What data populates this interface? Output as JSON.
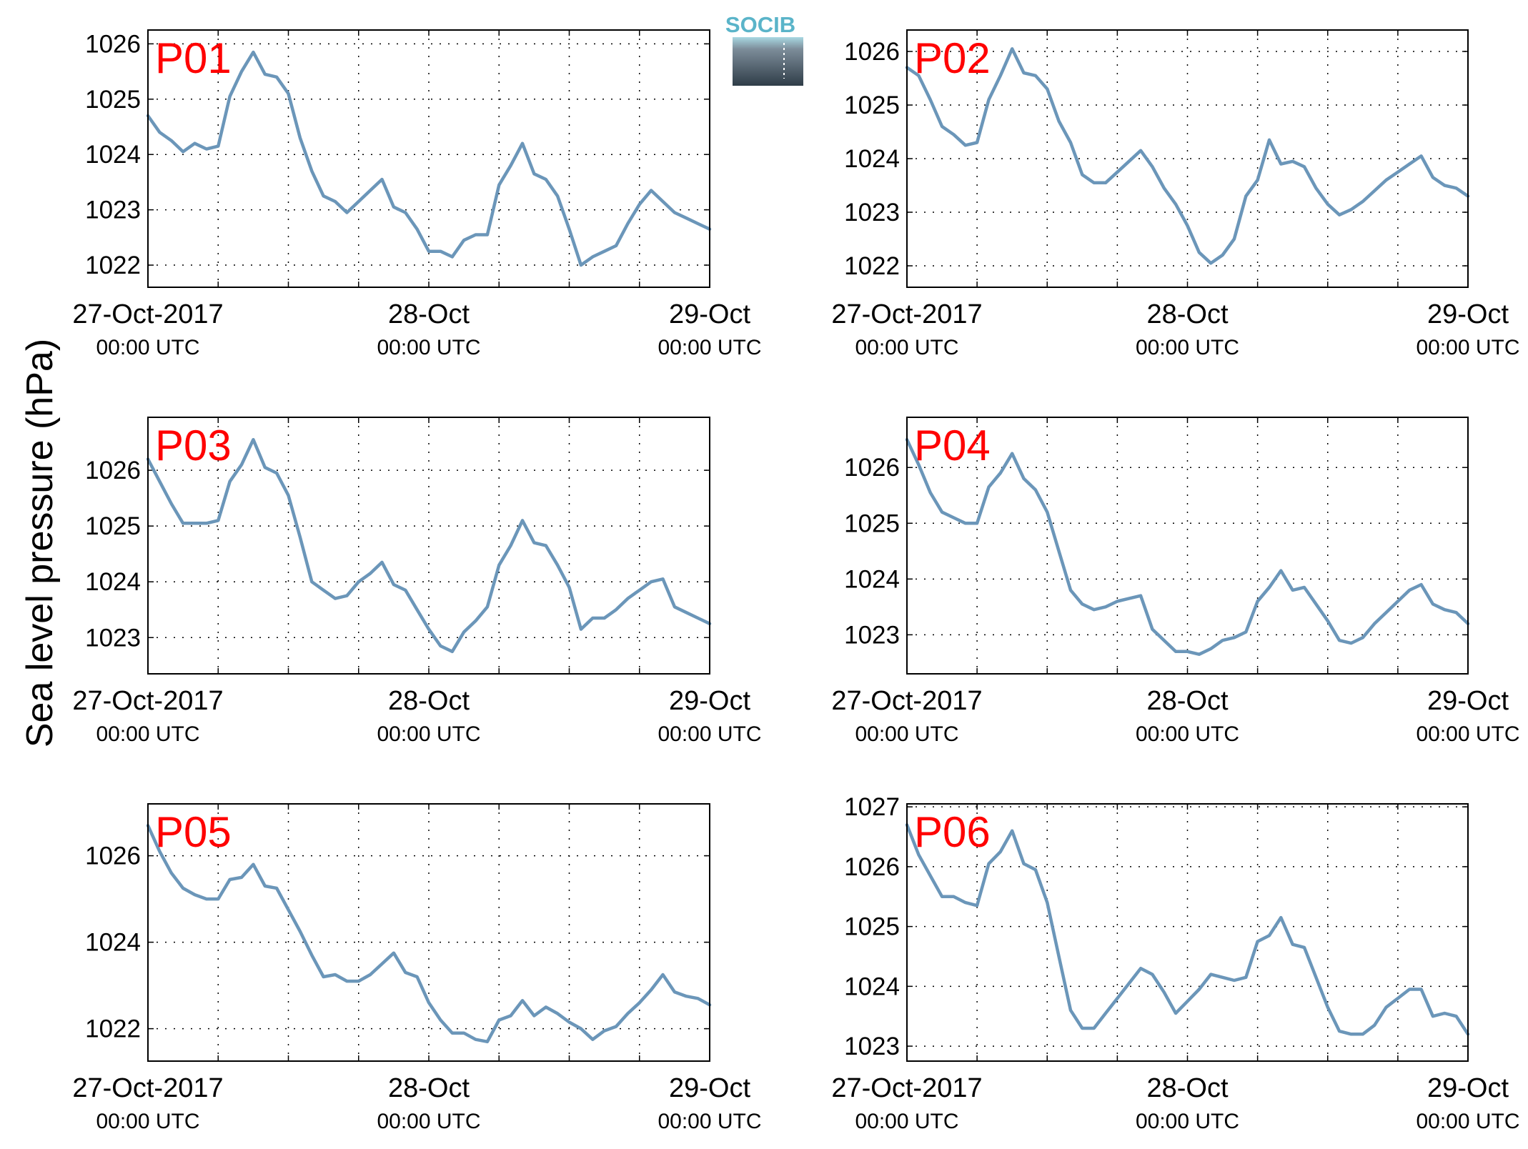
{
  "figure": {
    "ylabel": "Sea level pressure (hPa)",
    "logo_text": "SOCIB",
    "line_color": "#6b96b9",
    "label_color": "#ff0000"
  },
  "chart_data": [
    {
      "type": "line",
      "panel_label": "P01",
      "xlabel": "",
      "ylabel": "Sea level pressure (hPa)",
      "grid": true,
      "x_ticks": [
        {
          "value": 0,
          "main": "27-Oct-2017",
          "sub": "00:00 UTC"
        },
        {
          "value": 24,
          "main": "28-Oct",
          "sub": "00:00 UTC"
        },
        {
          "value": 48,
          "main": "29-Oct",
          "sub": "00:00 UTC"
        }
      ],
      "xlim": [
        0,
        48
      ],
      "ylim": [
        1021.6,
        1026.25
      ],
      "yticks": [
        1022,
        1023,
        1024,
        1025,
        1026
      ],
      "series": [
        {
          "x": [
            0,
            1,
            2,
            3,
            4,
            5,
            6,
            7,
            8,
            9,
            10,
            11,
            12,
            13,
            14,
            15,
            16,
            17,
            18,
            19,
            20,
            21,
            22,
            23,
            24,
            25,
            26,
            27,
            28,
            29,
            30,
            31,
            32,
            33,
            34,
            35,
            36,
            37,
            38,
            39,
            40,
            41,
            42,
            43,
            44,
            45,
            46,
            47,
            48
          ],
          "y": [
            1024.7,
            1024.4,
            1024.25,
            1024.05,
            1024.2,
            1024.1,
            1024.15,
            1025.05,
            1025.5,
            1025.85,
            1025.45,
            1025.4,
            1025.1,
            1024.3,
            1023.7,
            1023.25,
            1023.15,
            1022.95,
            1023.15,
            1023.35,
            1023.55,
            1023.05,
            1022.95,
            1022.65,
            1022.25,
            1022.25,
            1022.15,
            1022.45,
            1022.55,
            1022.55,
            1023.45,
            1023.8,
            1024.2,
            1023.65,
            1023.55,
            1023.25,
            1022.65,
            1022.0,
            1022.15,
            1022.25,
            1022.35,
            1022.75,
            1023.1,
            1023.35,
            1023.15,
            1022.95,
            1022.85,
            1022.75,
            1022.65
          ]
        }
      ]
    },
    {
      "type": "line",
      "panel_label": "P02",
      "xlabel": "",
      "ylabel": "Sea level pressure (hPa)",
      "grid": true,
      "x_ticks": [
        {
          "value": 0,
          "main": "27-Oct-2017",
          "sub": "00:00 UTC"
        },
        {
          "value": 24,
          "main": "28-Oct",
          "sub": "00:00 UTC"
        },
        {
          "value": 48,
          "main": "29-Oct",
          "sub": "00:00 UTC"
        }
      ],
      "xlim": [
        0,
        48
      ],
      "ylim": [
        1021.6,
        1026.4
      ],
      "yticks": [
        1022,
        1023,
        1024,
        1025,
        1026
      ],
      "series": [
        {
          "x": [
            0,
            1,
            2,
            3,
            4,
            5,
            6,
            7,
            8,
            9,
            10,
            11,
            12,
            13,
            14,
            15,
            16,
            17,
            18,
            19,
            20,
            21,
            22,
            23,
            24,
            25,
            26,
            27,
            28,
            29,
            30,
            31,
            32,
            33,
            34,
            35,
            36,
            37,
            38,
            39,
            40,
            41,
            42,
            43,
            44,
            45,
            46,
            47,
            48
          ],
          "y": [
            1025.7,
            1025.55,
            1025.1,
            1024.6,
            1024.45,
            1024.25,
            1024.3,
            1025.1,
            1025.55,
            1026.05,
            1025.6,
            1025.55,
            1025.3,
            1024.7,
            1024.3,
            1023.7,
            1023.55,
            1023.55,
            1023.75,
            1023.95,
            1024.15,
            1023.85,
            1023.45,
            1023.15,
            1022.75,
            1022.25,
            1022.05,
            1022.2,
            1022.5,
            1023.3,
            1023.6,
            1024.35,
            1023.9,
            1023.95,
            1023.85,
            1023.45,
            1023.15,
            1022.95,
            1023.05,
            1023.2,
            1023.4,
            1023.6,
            1023.75,
            1023.9,
            1024.05,
            1023.65,
            1023.5,
            1023.45,
            1023.3
          ]
        }
      ]
    },
    {
      "type": "line",
      "panel_label": "P03",
      "xlabel": "",
      "ylabel": "Sea level pressure (hPa)",
      "grid": true,
      "x_ticks": [
        {
          "value": 0,
          "main": "27-Oct-2017",
          "sub": "00:00 UTC"
        },
        {
          "value": 24,
          "main": "28-Oct",
          "sub": "00:00 UTC"
        },
        {
          "value": 48,
          "main": "29-Oct",
          "sub": "00:00 UTC"
        }
      ],
      "xlim": [
        0,
        48
      ],
      "ylim": [
        1022.35,
        1026.95
      ],
      "yticks": [
        1023,
        1024,
        1025,
        1026
      ],
      "series": [
        {
          "x": [
            0,
            1,
            2,
            3,
            4,
            5,
            6,
            7,
            8,
            9,
            10,
            11,
            12,
            13,
            14,
            15,
            16,
            17,
            18,
            19,
            20,
            21,
            22,
            23,
            24,
            25,
            26,
            27,
            28,
            29,
            30,
            31,
            32,
            33,
            34,
            35,
            36,
            37,
            38,
            39,
            40,
            41,
            42,
            43,
            44,
            45,
            46,
            47,
            48
          ],
          "y": [
            1026.2,
            1025.8,
            1025.4,
            1025.05,
            1025.05,
            1025.05,
            1025.1,
            1025.8,
            1026.1,
            1026.55,
            1026.05,
            1025.95,
            1025.55,
            1024.8,
            1024.0,
            1023.85,
            1023.7,
            1023.75,
            1024.0,
            1024.15,
            1024.35,
            1023.95,
            1023.85,
            1023.5,
            1023.15,
            1022.85,
            1022.75,
            1023.1,
            1023.3,
            1023.55,
            1024.3,
            1024.65,
            1025.1,
            1024.7,
            1024.65,
            1024.3,
            1023.9,
            1023.15,
            1023.35,
            1023.35,
            1023.5,
            1023.7,
            1023.85,
            1024.0,
            1024.05,
            1023.55,
            1023.45,
            1023.35,
            1023.25
          ]
        }
      ]
    },
    {
      "type": "line",
      "panel_label": "P04",
      "xlabel": "",
      "ylabel": "Sea level pressure (hPa)",
      "grid": true,
      "x_ticks": [
        {
          "value": 0,
          "main": "27-Oct-2017",
          "sub": "00:00 UTC"
        },
        {
          "value": 24,
          "main": "28-Oct",
          "sub": "00:00 UTC"
        },
        {
          "value": 48,
          "main": "29-Oct",
          "sub": "00:00 UTC"
        }
      ],
      "xlim": [
        0,
        48
      ],
      "ylim": [
        1022.3,
        1026.9
      ],
      "yticks": [
        1023,
        1024,
        1025,
        1026
      ],
      "series": [
        {
          "x": [
            0,
            1,
            2,
            3,
            4,
            5,
            6,
            7,
            8,
            9,
            10,
            11,
            12,
            13,
            14,
            15,
            16,
            17,
            18,
            19,
            20,
            21,
            22,
            23,
            24,
            25,
            26,
            27,
            28,
            29,
            30,
            31,
            32,
            33,
            34,
            35,
            36,
            37,
            38,
            39,
            40,
            41,
            42,
            43,
            44,
            45,
            46,
            47,
            48
          ],
          "y": [
            1026.5,
            1026.05,
            1025.55,
            1025.2,
            1025.1,
            1025.0,
            1025.0,
            1025.65,
            1025.9,
            1026.25,
            1025.8,
            1025.6,
            1025.2,
            1024.5,
            1023.8,
            1023.55,
            1023.45,
            1023.5,
            1023.6,
            1023.65,
            1023.7,
            1023.1,
            1022.9,
            1022.7,
            1022.7,
            1022.65,
            1022.75,
            1022.9,
            1022.95,
            1023.05,
            1023.6,
            1023.85,
            1024.15,
            1023.8,
            1023.85,
            1023.55,
            1023.25,
            1022.9,
            1022.85,
            1022.95,
            1023.2,
            1023.4,
            1023.6,
            1023.8,
            1023.9,
            1023.55,
            1023.45,
            1023.4,
            1023.2
          ]
        }
      ]
    },
    {
      "type": "line",
      "panel_label": "P05",
      "xlabel": "",
      "ylabel": "Sea level pressure (hPa)",
      "grid": true,
      "x_ticks": [
        {
          "value": 0,
          "main": "27-Oct-2017",
          "sub": "00:00 UTC"
        },
        {
          "value": 24,
          "main": "28-Oct",
          "sub": "00:00 UTC"
        },
        {
          "value": 48,
          "main": "29-Oct",
          "sub": "00:00 UTC"
        }
      ],
      "xlim": [
        0,
        48
      ],
      "ylim": [
        1021.25,
        1027.2
      ],
      "yticks": [
        1022,
        1024,
        1026
      ],
      "series": [
        {
          "x": [
            0,
            1,
            2,
            3,
            4,
            5,
            6,
            7,
            8,
            9,
            10,
            11,
            12,
            13,
            14,
            15,
            16,
            17,
            18,
            19,
            20,
            21,
            22,
            23,
            24,
            25,
            26,
            27,
            28,
            29,
            30,
            31,
            32,
            33,
            34,
            35,
            36,
            37,
            38,
            39,
            40,
            41,
            42,
            43,
            44,
            45,
            46,
            47,
            48
          ],
          "y": [
            1026.7,
            1026.1,
            1025.6,
            1025.25,
            1025.1,
            1025.0,
            1025.0,
            1025.45,
            1025.5,
            1025.8,
            1025.3,
            1025.25,
            1024.75,
            1024.25,
            1023.7,
            1023.2,
            1023.25,
            1023.1,
            1023.1,
            1023.25,
            1023.5,
            1023.75,
            1023.3,
            1023.2,
            1022.6,
            1022.2,
            1021.9,
            1021.9,
            1021.75,
            1021.7,
            1022.2,
            1022.3,
            1022.65,
            1022.3,
            1022.5,
            1022.35,
            1022.15,
            1022.0,
            1021.75,
            1021.95,
            1022.05,
            1022.35,
            1022.6,
            1022.9,
            1023.25,
            1022.85,
            1022.75,
            1022.7,
            1022.55
          ]
        }
      ]
    },
    {
      "type": "line",
      "panel_label": "P06",
      "xlabel": "",
      "ylabel": "Sea level pressure (hPa)",
      "grid": true,
      "x_ticks": [
        {
          "value": 0,
          "main": "27-Oct-2017",
          "sub": "00:00 UTC"
        },
        {
          "value": 24,
          "main": "28-Oct",
          "sub": "00:00 UTC"
        },
        {
          "value": 48,
          "main": "29-Oct",
          "sub": "00:00 UTC"
        }
      ],
      "xlim": [
        0,
        48
      ],
      "ylim": [
        1022.75,
        1027.05
      ],
      "yticks": [
        1023,
        1024,
        1025,
        1026,
        1027
      ],
      "series": [
        {
          "x": [
            0,
            1,
            2,
            3,
            4,
            5,
            6,
            7,
            8,
            9,
            10,
            11,
            12,
            13,
            14,
            15,
            16,
            17,
            18,
            19,
            20,
            21,
            22,
            23,
            24,
            25,
            26,
            27,
            28,
            29,
            30,
            31,
            32,
            33,
            34,
            35,
            36,
            37,
            38,
            39,
            40,
            41,
            42,
            43,
            44,
            45,
            46,
            47,
            48
          ],
          "y": [
            1026.7,
            1026.2,
            1025.85,
            1025.5,
            1025.5,
            1025.4,
            1025.35,
            1026.05,
            1026.25,
            1026.6,
            1026.05,
            1025.95,
            1025.4,
            1024.5,
            1023.6,
            1023.3,
            1023.3,
            1023.55,
            1023.8,
            1024.05,
            1024.3,
            1024.2,
            1023.9,
            1023.55,
            1023.75,
            1023.95,
            1024.2,
            1024.15,
            1024.1,
            1024.15,
            1024.75,
            1024.85,
            1025.15,
            1024.7,
            1024.65,
            1024.15,
            1023.65,
            1023.25,
            1023.2,
            1023.2,
            1023.35,
            1023.65,
            1023.8,
            1023.95,
            1023.95,
            1023.5,
            1023.55,
            1023.5,
            1023.2
          ]
        }
      ]
    }
  ]
}
